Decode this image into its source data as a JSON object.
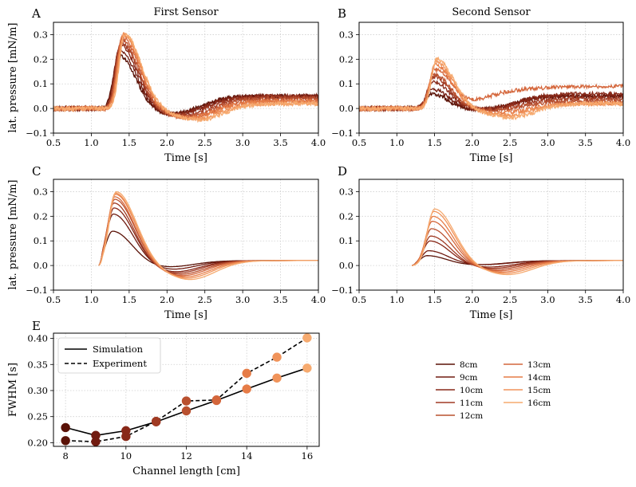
{
  "chart_data": [
    {
      "panel": "A",
      "title": "First Sensor",
      "type": "line",
      "xlabel": "Time [s]",
      "ylabel": "lat. pressure [mN/m]",
      "xlim": [
        0.5,
        4.0
      ],
      "ylim": [
        -0.1,
        0.35
      ],
      "xticks": [
        "0.5",
        "1.0",
        "1.5",
        "2.0",
        "2.5",
        "3.0",
        "3.5",
        "4.0"
      ],
      "yticks": [
        "−0.1",
        "0.0",
        "0.1",
        "0.2",
        "0.3"
      ],
      "grid": true,
      "series": [
        {
          "name": "8cm",
          "peak_time": 1.36,
          "peak": 0.22,
          "trough": -0.02,
          "tail": 0.05
        },
        {
          "name": "9cm",
          "peak_time": 1.37,
          "peak": 0.24,
          "trough": -0.02,
          "tail": 0.05
        },
        {
          "name": "10cm",
          "peak_time": 1.38,
          "peak": 0.26,
          "trough": -0.02,
          "tail": 0.05
        },
        {
          "name": "11cm",
          "peak_time": 1.39,
          "peak": 0.27,
          "trough": -0.025,
          "tail": 0.045
        },
        {
          "name": "12cm",
          "peak_time": 1.4,
          "peak": 0.28,
          "trough": -0.03,
          "tail": 0.04
        },
        {
          "name": "13cm",
          "peak_time": 1.41,
          "peak": 0.29,
          "trough": -0.03,
          "tail": 0.03
        },
        {
          "name": "14cm",
          "peak_time": 1.42,
          "peak": 0.3,
          "trough": -0.03,
          "tail": 0.03
        },
        {
          "name": "15cm",
          "peak_time": 1.43,
          "peak": 0.3,
          "trough": -0.035,
          "tail": 0.02
        },
        {
          "name": "16cm",
          "peak_time": 1.44,
          "peak": 0.3,
          "trough": -0.04,
          "tail": 0.02
        }
      ]
    },
    {
      "panel": "B",
      "title": "Second Sensor",
      "type": "line",
      "xlabel": "Time [s]",
      "ylabel": "",
      "xlim": [
        0.5,
        4.0
      ],
      "ylim": [
        -0.1,
        0.35
      ],
      "xticks": [
        "0.5",
        "1.0",
        "1.5",
        "2.0",
        "2.5",
        "3.0",
        "3.5",
        "4.0"
      ],
      "yticks": [
        "−0.1",
        "0.0",
        "0.1",
        "0.2",
        "0.3"
      ],
      "grid": true,
      "series": [
        {
          "name": "8cm",
          "peak_time": 1.45,
          "peak": 0.06,
          "trough": 0.0,
          "tail": 0.05
        },
        {
          "name": "9cm",
          "peak_time": 1.46,
          "peak": 0.08,
          "trough": 0.0,
          "tail": 0.05
        },
        {
          "name": "10cm",
          "peak_time": 1.47,
          "peak": 0.11,
          "trough": 0.0,
          "tail": 0.06
        },
        {
          "name": "11cm",
          "peak_time": 1.48,
          "peak": 0.13,
          "trough": 0.0,
          "tail": 0.04
        },
        {
          "name": "12cm",
          "peak_time": 1.49,
          "peak": 0.14,
          "trough": 0.0,
          "tail": 0.03
        },
        {
          "name": "13cm",
          "peak_time": 1.5,
          "peak": 0.16,
          "trough": 0.06,
          "tail": 0.09
        },
        {
          "name": "14cm",
          "peak_time": 1.51,
          "peak": 0.18,
          "trough": -0.01,
          "tail": 0.02
        },
        {
          "name": "15cm",
          "peak_time": 1.52,
          "peak": 0.19,
          "trough": -0.02,
          "tail": 0.02
        },
        {
          "name": "16cm",
          "peak_time": 1.53,
          "peak": 0.2,
          "trough": -0.03,
          "tail": 0.02
        }
      ]
    },
    {
      "panel": "C",
      "title": "",
      "type": "line",
      "xlabel": "Time [s]",
      "ylabel": "lat. pressure [mN/m]",
      "xlim": [
        0.5,
        4.0
      ],
      "ylim": [
        -0.1,
        0.35
      ],
      "xticks": [
        "0.5",
        "1.0",
        "1.5",
        "2.0",
        "2.5",
        "3.0",
        "3.5",
        "4.0"
      ],
      "yticks": [
        "−0.1",
        "0.0",
        "0.1",
        "0.2",
        "0.3"
      ],
      "grid": true,
      "series": [
        {
          "name": "8cm",
          "peak_time": 1.28,
          "peak": 0.14,
          "trough": 0.0,
          "tail": 0.02
        },
        {
          "name": "9cm",
          "peak_time": 1.29,
          "peak": 0.21,
          "trough": -0.01,
          "tail": 0.02
        },
        {
          "name": "10cm",
          "peak_time": 1.3,
          "peak": 0.235,
          "trough": -0.02,
          "tail": 0.02
        },
        {
          "name": "11cm",
          "peak_time": 1.3,
          "peak": 0.255,
          "trough": -0.025,
          "tail": 0.02
        },
        {
          "name": "12cm",
          "peak_time": 1.31,
          "peak": 0.27,
          "trough": -0.03,
          "tail": 0.02
        },
        {
          "name": "13cm",
          "peak_time": 1.31,
          "peak": 0.28,
          "trough": -0.035,
          "tail": 0.02
        },
        {
          "name": "14cm",
          "peak_time": 1.32,
          "peak": 0.29,
          "trough": -0.04,
          "tail": 0.02
        },
        {
          "name": "15cm",
          "peak_time": 1.32,
          "peak": 0.295,
          "trough": -0.045,
          "tail": 0.02
        },
        {
          "name": "16cm",
          "peak_time": 1.33,
          "peak": 0.3,
          "trough": -0.05,
          "tail": 0.02
        }
      ]
    },
    {
      "panel": "D",
      "title": "",
      "type": "line",
      "xlabel": "Time [s]",
      "ylabel": "",
      "xlim": [
        0.5,
        4.0
      ],
      "ylim": [
        -0.1,
        0.35
      ],
      "xticks": [
        "0.5",
        "1.0",
        "1.5",
        "2.0",
        "2.5",
        "3.0",
        "3.5",
        "4.0"
      ],
      "yticks": [
        "−0.1",
        "0.0",
        "0.1",
        "0.2",
        "0.3"
      ],
      "grid": true,
      "series": [
        {
          "name": "8cm",
          "peak_time": 1.4,
          "peak": 0.04,
          "trough": 0.01,
          "tail": 0.02
        },
        {
          "name": "9cm",
          "peak_time": 1.42,
          "peak": 0.06,
          "trough": 0.01,
          "tail": 0.02
        },
        {
          "name": "10cm",
          "peak_time": 1.44,
          "peak": 0.1,
          "trough": 0.0,
          "tail": 0.02
        },
        {
          "name": "11cm",
          "peak_time": 1.45,
          "peak": 0.12,
          "trough": -0.005,
          "tail": 0.02
        },
        {
          "name": "12cm",
          "peak_time": 1.46,
          "peak": 0.15,
          "trough": -0.01,
          "tail": 0.02
        },
        {
          "name": "13cm",
          "peak_time": 1.47,
          "peak": 0.18,
          "trough": -0.015,
          "tail": 0.02
        },
        {
          "name": "14cm",
          "peak_time": 1.48,
          "peak": 0.2,
          "trough": -0.02,
          "tail": 0.02
        },
        {
          "name": "15cm",
          "peak_time": 1.49,
          "peak": 0.22,
          "trough": -0.025,
          "tail": 0.02
        },
        {
          "name": "16cm",
          "peak_time": 1.5,
          "peak": 0.23,
          "trough": -0.03,
          "tail": 0.02
        }
      ]
    },
    {
      "panel": "E",
      "title": "",
      "type": "line",
      "xlabel": "Channel length [cm]",
      "ylabel": "FWHM [s]",
      "xlim": [
        7.6,
        16.4
      ],
      "ylim": [
        0.193,
        0.41
      ],
      "xticks": [
        "8",
        "10",
        "12",
        "14",
        "16"
      ],
      "yticks": [
        "0.20",
        "0.25",
        "0.30",
        "0.35",
        "0.40"
      ],
      "grid": true,
      "legend_position": "top-left",
      "x": [
        8,
        9,
        10,
        11,
        12,
        13,
        14,
        15,
        16
      ],
      "series": [
        {
          "name": "Simulation",
          "style": "solid",
          "values": [
            0.229,
            0.214,
            0.223,
            0.24,
            0.261,
            0.281,
            0.303,
            0.324,
            0.343
          ]
        },
        {
          "name": "Experiment",
          "style": "dashed",
          "values": [
            0.204,
            0.202,
            0.212,
            0.241,
            0.28,
            0.282,
            0.333,
            0.364,
            0.401
          ]
        }
      ]
    }
  ],
  "legend": {
    "items": [
      {
        "label": "8cm",
        "color": "#5a1207"
      },
      {
        "label": "9cm",
        "color": "#711b10"
      },
      {
        "label": "10cm",
        "color": "#882818"
      },
      {
        "label": "11cm",
        "color": "#a03a23"
      },
      {
        "label": "12cm",
        "color": "#b9502f"
      },
      {
        "label": "13cm",
        "color": "#d4663b"
      },
      {
        "label": "14cm",
        "color": "#e67c47"
      },
      {
        "label": "15cm",
        "color": "#f0935a"
      },
      {
        "label": "16cm",
        "color": "#f6aa6f"
      }
    ]
  }
}
